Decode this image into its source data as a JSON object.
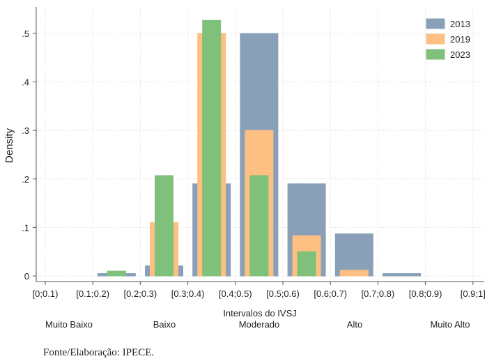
{
  "chart_data": {
    "type": "bar",
    "categories": [
      "[0.1;0.2)",
      "[0.2;0.3)",
      "[0.3;0.4)",
      "[0.4;0.5)",
      "[0.5;0.6)",
      "[0.6;0.7)",
      "[0.7;0.8)",
      "[0.8;0.9)"
    ],
    "series": [
      {
        "name": "2013",
        "values": [
          0.005,
          0.021,
          0.19,
          0.5,
          0.19,
          0.087,
          0.005,
          0
        ],
        "color": "#8aa0b8"
      },
      {
        "name": "2019",
        "values": [
          0,
          0.11,
          0.5,
          0.3,
          0.083,
          0.012,
          0,
          0
        ],
        "color": "#fdc082"
      },
      {
        "name": "2023",
        "values": [
          0.01,
          0.207,
          0.527,
          0.207,
          0.05,
          0,
          0,
          0
        ],
        "color": "#7fc07b"
      }
    ],
    "x_tick_labels": [
      "[0;0.1)",
      "[0.1;0.2)",
      "[0.2;0.3)",
      "[0.3;0.4)",
      "[0.4;0.5)",
      "[0.5;0.6)",
      "[0.6;0.7)",
      "[0.7;0.8)",
      "[0.8;0.9)",
      "[0.9;1]"
    ],
    "y_ticks": [
      0,
      0.1,
      0.2,
      0.3,
      0.4,
      0.5
    ],
    "y_tick_labels": [
      "0",
      ".1",
      ".2",
      ".3",
      ".4",
      ".5"
    ],
    "ylim": [
      0,
      0.55
    ],
    "xlabel": "Intervalos do IVSJ",
    "ylabel": "Density",
    "category_groups": [
      "Muito Baixo",
      "Baixo",
      "Moderado",
      "Alto",
      "Muito Alto"
    ],
    "legend_position": "top-right",
    "grid": true
  },
  "source_note": "Fonte/Elaboração: IPECE."
}
